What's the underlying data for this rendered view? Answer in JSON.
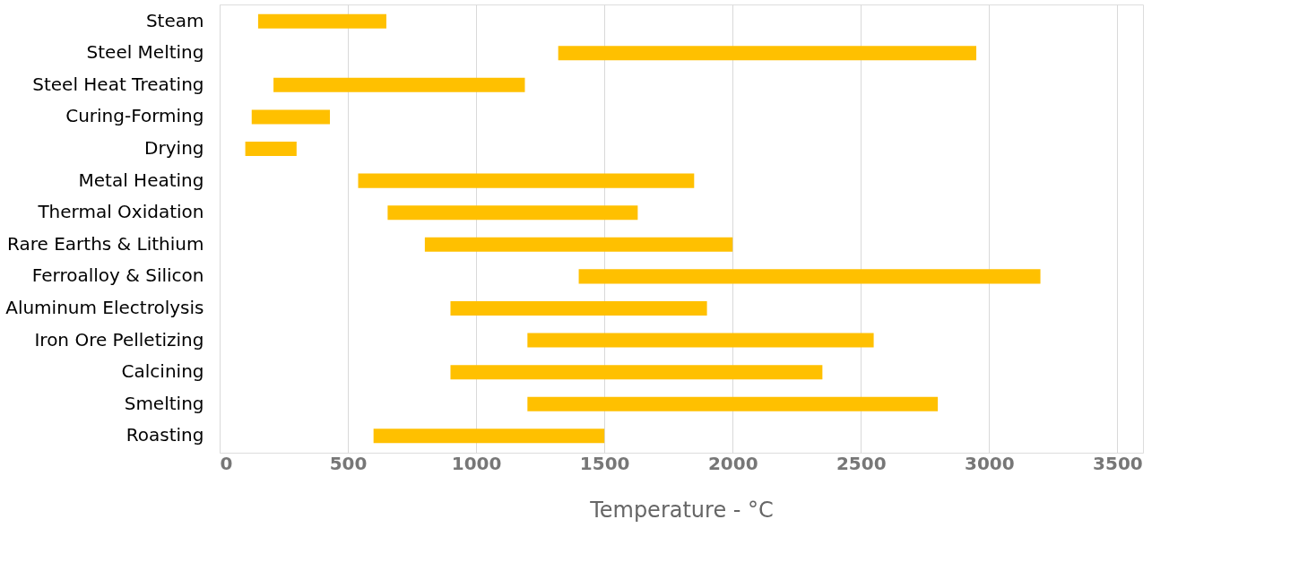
{
  "chart_data": {
    "type": "bar",
    "orientation": "horizontal",
    "xlabel": "Temperature - °C",
    "categories": [
      "Steam",
      "Steel Melting",
      "Steel Heat Treating",
      "Curing-Forming",
      "Drying",
      "Metal Heating",
      "Thermal Oxidation",
      "Rare Earths & Lithium",
      "Ferroalloy & Silicon",
      "Aluminum Electrolysis",
      "Iron Ore Pelletizing",
      "Calcining",
      "Smelting",
      "Roasting"
    ],
    "base": [
      150,
      1320,
      210,
      125,
      100,
      540,
      655,
      800,
      1400,
      900,
      1200,
      900,
      1200,
      600
    ],
    "values": [
      500,
      1630,
      980,
      305,
      200,
      1310,
      975,
      1200,
      1800,
      1000,
      1350,
      1450,
      1600,
      900
    ],
    "color": "#ffc000",
    "xlim": [
      0,
      3600
    ],
    "xticks": [
      0,
      500,
      1000,
      1500,
      2000,
      2500,
      3000,
      3500
    ],
    "grid": "x"
  }
}
